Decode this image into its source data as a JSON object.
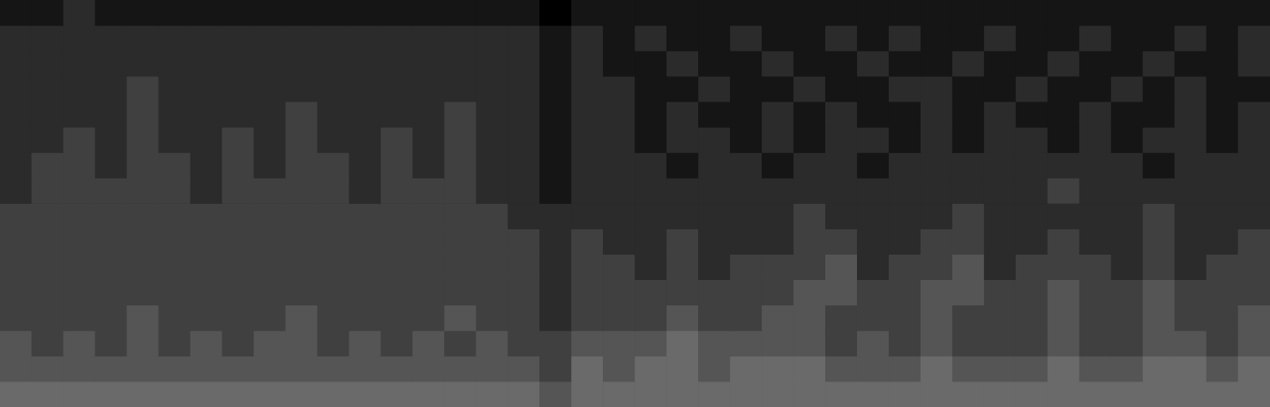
{
  "chart_data": {
    "type": "heatmap",
    "tick_labels": false,
    "grid": false,
    "zlim": [
      0,
      12
    ],
    "cells": [
      [
        1,
        1,
        2,
        1,
        1,
        1,
        1,
        1,
        1,
        1,
        1,
        1,
        1,
        1,
        1,
        1,
        1,
        0,
        1,
        1,
        1,
        1,
        1,
        1,
        1,
        1,
        1,
        1,
        1,
        1,
        1,
        1,
        1,
        1,
        1,
        1,
        1,
        1,
        1,
        1
      ],
      [
        2,
        2,
        2,
        2,
        2,
        2,
        2,
        2,
        2,
        2,
        2,
        2,
        2,
        2,
        2,
        2,
        2,
        1,
        2,
        1,
        2,
        1,
        1,
        2,
        1,
        1,
        2,
        1,
        2,
        1,
        1,
        2,
        1,
        1,
        2,
        1,
        1,
        2,
        1,
        2
      ],
      [
        2,
        2,
        2,
        2,
        2,
        2,
        2,
        2,
        2,
        2,
        2,
        2,
        2,
        2,
        2,
        2,
        2,
        1,
        2,
        1,
        1,
        2,
        1,
        1,
        2,
        1,
        1,
        2,
        1,
        1,
        2,
        1,
        1,
        2,
        1,
        1,
        2,
        1,
        1,
        2
      ],
      [
        2,
        2,
        2,
        2,
        3,
        2,
        2,
        2,
        2,
        2,
        2,
        2,
        2,
        2,
        2,
        2,
        2,
        1,
        2,
        2,
        1,
        1,
        2,
        1,
        1,
        2,
        1,
        1,
        2,
        2,
        1,
        1,
        2,
        1,
        1,
        2,
        1,
        2,
        1,
        1
      ],
      [
        2,
        2,
        2,
        2,
        3,
        2,
        2,
        2,
        2,
        3,
        2,
        2,
        2,
        2,
        3,
        2,
        2,
        1,
        2,
        2,
        1,
        2,
        1,
        1,
        2,
        1,
        2,
        1,
        1,
        2,
        1,
        2,
        1,
        1,
        2,
        1,
        1,
        2,
        1,
        2
      ],
      [
        2,
        2,
        3,
        2,
        3,
        2,
        2,
        3,
        2,
        3,
        2,
        2,
        3,
        2,
        3,
        2,
        2,
        1,
        2,
        2,
        1,
        2,
        2,
        1,
        2,
        1,
        2,
        2,
        1,
        2,
        1,
        2,
        2,
        1,
        2,
        1,
        2,
        2,
        1,
        2
      ],
      [
        2,
        3,
        3,
        2,
        3,
        3,
        2,
        3,
        2,
        3,
        3,
        2,
        3,
        2,
        3,
        2,
        2,
        1,
        2,
        2,
        2,
        1,
        2,
        2,
        1,
        2,
        2,
        1,
        2,
        2,
        2,
        2,
        2,
        2,
        2,
        2,
        1,
        2,
        2,
        2
      ],
      [
        2,
        3,
        3,
        3,
        3,
        3,
        2,
        3,
        3,
        3,
        3,
        2,
        3,
        3,
        3,
        2,
        2,
        1,
        2,
        2,
        2,
        2,
        2,
        2,
        2,
        2,
        2,
        2,
        2,
        2,
        2,
        2,
        2,
        3,
        2,
        2,
        2,
        2,
        2,
        2
      ],
      [
        3,
        3,
        3,
        3,
        3,
        3,
        3,
        3,
        3,
        3,
        3,
        3,
        3,
        3,
        3,
        3,
        2,
        2,
        2,
        2,
        2,
        2,
        2,
        2,
        2,
        3,
        2,
        2,
        2,
        2,
        3,
        2,
        2,
        2,
        2,
        2,
        3,
        2,
        2,
        2
      ],
      [
        3,
        3,
        3,
        3,
        3,
        3,
        3,
        3,
        3,
        3,
        3,
        3,
        3,
        3,
        3,
        3,
        3,
        2,
        3,
        2,
        2,
        3,
        2,
        2,
        2,
        3,
        3,
        2,
        2,
        3,
        3,
        2,
        2,
        3,
        2,
        2,
        3,
        2,
        2,
        3
      ],
      [
        3,
        3,
        3,
        3,
        3,
        3,
        3,
        3,
        3,
        3,
        3,
        3,
        3,
        3,
        3,
        3,
        3,
        2,
        3,
        3,
        2,
        3,
        2,
        3,
        3,
        3,
        4,
        2,
        3,
        3,
        4,
        2,
        3,
        3,
        3,
        2,
        3,
        2,
        3,
        3
      ],
      [
        3,
        3,
        3,
        3,
        3,
        3,
        3,
        3,
        3,
        3,
        3,
        3,
        3,
        3,
        3,
        3,
        3,
        2,
        3,
        3,
        3,
        3,
        3,
        3,
        3,
        4,
        4,
        3,
        3,
        4,
        4,
        3,
        3,
        4,
        3,
        3,
        4,
        3,
        3,
        3
      ],
      [
        3,
        3,
        3,
        3,
        4,
        3,
        3,
        3,
        3,
        4,
        3,
        3,
        3,
        3,
        4,
        3,
        3,
        2,
        3,
        3,
        3,
        4,
        3,
        3,
        4,
        4,
        3,
        3,
        3,
        4,
        3,
        3,
        3,
        4,
        3,
        3,
        4,
        3,
        3,
        4
      ],
      [
        4,
        3,
        4,
        3,
        4,
        3,
        4,
        3,
        4,
        4,
        3,
        4,
        3,
        4,
        3,
        4,
        3,
        3,
        4,
        4,
        4,
        5,
        4,
        4,
        4,
        4,
        3,
        4,
        3,
        4,
        3,
        3,
        3,
        4,
        3,
        3,
        4,
        4,
        3,
        4
      ],
      [
        4,
        4,
        4,
        4,
        4,
        4,
        4,
        4,
        4,
        4,
        4,
        4,
        4,
        4,
        4,
        4,
        4,
        3,
        5,
        4,
        5,
        5,
        4,
        5,
        5,
        5,
        4,
        4,
        4,
        5,
        4,
        4,
        4,
        5,
        4,
        4,
        5,
        5,
        4,
        5
      ],
      [
        5,
        5,
        5,
        5,
        5,
        5,
        5,
        5,
        5,
        5,
        5,
        5,
        5,
        5,
        5,
        5,
        5,
        4,
        5,
        5,
        5,
        5,
        5,
        5,
        5,
        5,
        5,
        5,
        5,
        5,
        5,
        5,
        5,
        5,
        5,
        5,
        5,
        5,
        5,
        5
      ]
    ]
  }
}
